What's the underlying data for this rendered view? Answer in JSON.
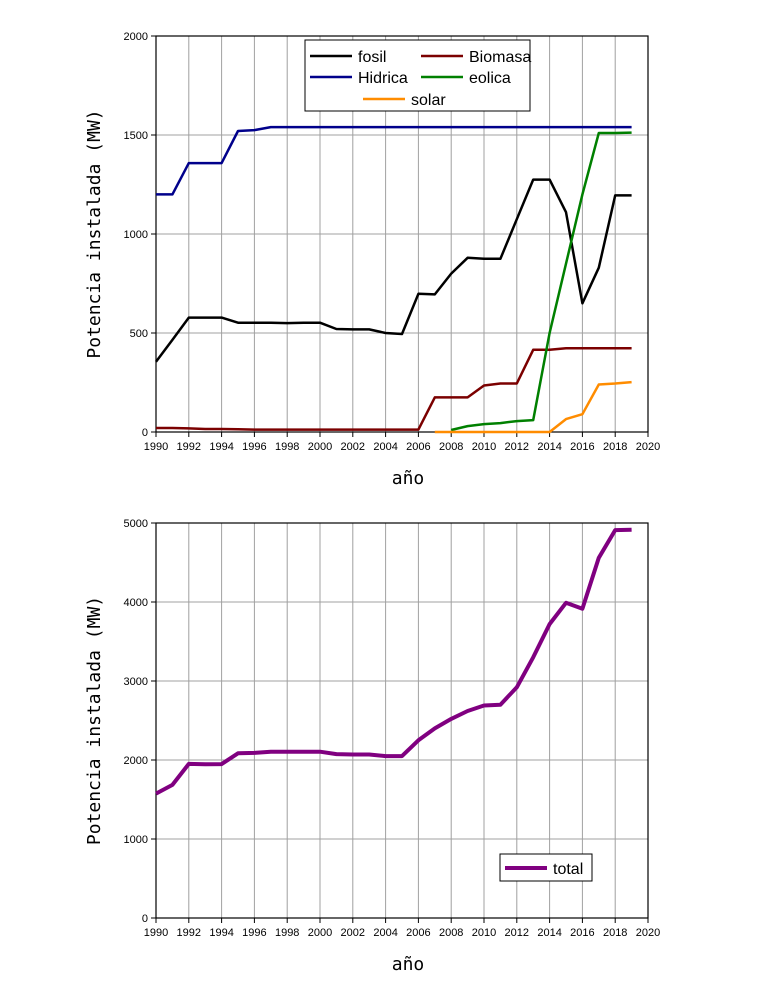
{
  "chart_data": [
    {
      "type": "line",
      "xlabel": "año",
      "ylabel": "Potencia instalada (MW)",
      "xlim": [
        1990,
        2020
      ],
      "ylim": [
        0,
        2000
      ],
      "xticks": [
        1990,
        1992,
        1994,
        1996,
        1998,
        2000,
        2002,
        2004,
        2006,
        2008,
        2010,
        2012,
        2014,
        2016,
        2018,
        2020
      ],
      "yticks": [
        0,
        500,
        1000,
        1500,
        2000
      ],
      "grid": true,
      "legend_position": "top-center",
      "series": [
        {
          "name": "fosil",
          "color": "#000000",
          "x": [
            1990,
            1991,
            1992,
            1993,
            1994,
            1995,
            1996,
            1997,
            1998,
            1999,
            2000,
            2001,
            2002,
            2003,
            2004,
            2005,
            2006,
            2007,
            2008,
            2009,
            2010,
            2011,
            2012,
            2013,
            2014,
            2015,
            2016,
            2017,
            2018,
            2019
          ],
          "y": [
            355,
            465,
            578,
            578,
            578,
            552,
            552,
            552,
            550,
            552,
            552,
            520,
            518,
            518,
            500,
            495,
            698,
            695,
            800,
            880,
            875,
            875,
            1075,
            1275,
            1275,
            1110,
            650,
            830,
            1195,
            1195
          ]
        },
        {
          "name": "Biomasa",
          "color": "#7b0000",
          "x": [
            1990,
            1991,
            1992,
            1993,
            1994,
            1995,
            1996,
            1997,
            1998,
            1999,
            2000,
            2001,
            2002,
            2003,
            2004,
            2005,
            2006,
            2007,
            2008,
            2009,
            2010,
            2011,
            2012,
            2013,
            2014,
            2015,
            2016,
            2017,
            2018,
            2019
          ],
          "y": [
            20,
            20,
            18,
            15,
            15,
            14,
            12,
            12,
            12,
            12,
            12,
            12,
            12,
            12,
            12,
            12,
            12,
            175,
            175,
            175,
            235,
            245,
            245,
            415,
            415,
            423,
            423,
            423,
            423,
            423
          ]
        },
        {
          "name": "Hidrica",
          "color": "#00008b",
          "x": [
            1990,
            1991,
            1992,
            1993,
            1994,
            1995,
            1996,
            1997,
            1998,
            1999,
            2000,
            2001,
            2002,
            2003,
            2004,
            2005,
            2006,
            2007,
            2008,
            2009,
            2010,
            2011,
            2012,
            2013,
            2014,
            2015,
            2016,
            2017,
            2018,
            2019
          ],
          "y": [
            1200,
            1200,
            1358,
            1358,
            1358,
            1520,
            1525,
            1540,
            1540,
            1540,
            1540,
            1540,
            1540,
            1540,
            1540,
            1540,
            1540,
            1540,
            1540,
            1540,
            1540,
            1540,
            1540,
            1540,
            1540,
            1540,
            1540,
            1540,
            1540,
            1540
          ]
        },
        {
          "name": "eolica",
          "color": "#008000",
          "x": [
            2008,
            2009,
            2010,
            2011,
            2012,
            2013,
            2014,
            2015,
            2016,
            2017,
            2018,
            2019
          ],
          "y": [
            10,
            30,
            40,
            45,
            55,
            60,
            500,
            850,
            1200,
            1510,
            1510,
            1512
          ]
        },
        {
          "name": "solar",
          "color": "#ff8c00",
          "x": [
            2007,
            2008,
            2009,
            2010,
            2011,
            2012,
            2013,
            2014,
            2015,
            2016,
            2017,
            2018,
            2019
          ],
          "y": [
            0,
            0,
            0,
            0,
            0,
            0,
            0,
            0,
            65,
            90,
            240,
            245,
            252
          ]
        }
      ]
    },
    {
      "type": "line",
      "xlabel": "año",
      "ylabel": "Potencia instalada (MW)",
      "xlim": [
        1990,
        2020
      ],
      "ylim": [
        0,
        5000
      ],
      "xticks": [
        1990,
        1992,
        1994,
        1996,
        1998,
        2000,
        2002,
        2004,
        2006,
        2008,
        2010,
        2012,
        2014,
        2016,
        2018,
        2020
      ],
      "yticks": [
        0,
        1000,
        2000,
        3000,
        4000,
        5000
      ],
      "grid": true,
      "legend_position": "bottom-right",
      "series": [
        {
          "name": "total",
          "color": "#800080",
          "x": [
            1990,
            1991,
            1992,
            1993,
            1994,
            1995,
            1996,
            1997,
            1998,
            1999,
            2000,
            2001,
            2002,
            2003,
            2004,
            2005,
            2006,
            2007,
            2008,
            2009,
            2010,
            2011,
            2012,
            2013,
            2014,
            2015,
            2016,
            2017,
            2018,
            2019
          ],
          "y": [
            1575,
            1685,
            1950,
            1945,
            1948,
            2085,
            2090,
            2105,
            2105,
            2105,
            2105,
            2075,
            2070,
            2070,
            2050,
            2050,
            2250,
            2400,
            2520,
            2620,
            2690,
            2700,
            2920,
            3300,
            3720,
            3990,
            3915,
            4560,
            4910,
            4915
          ]
        }
      ]
    }
  ]
}
